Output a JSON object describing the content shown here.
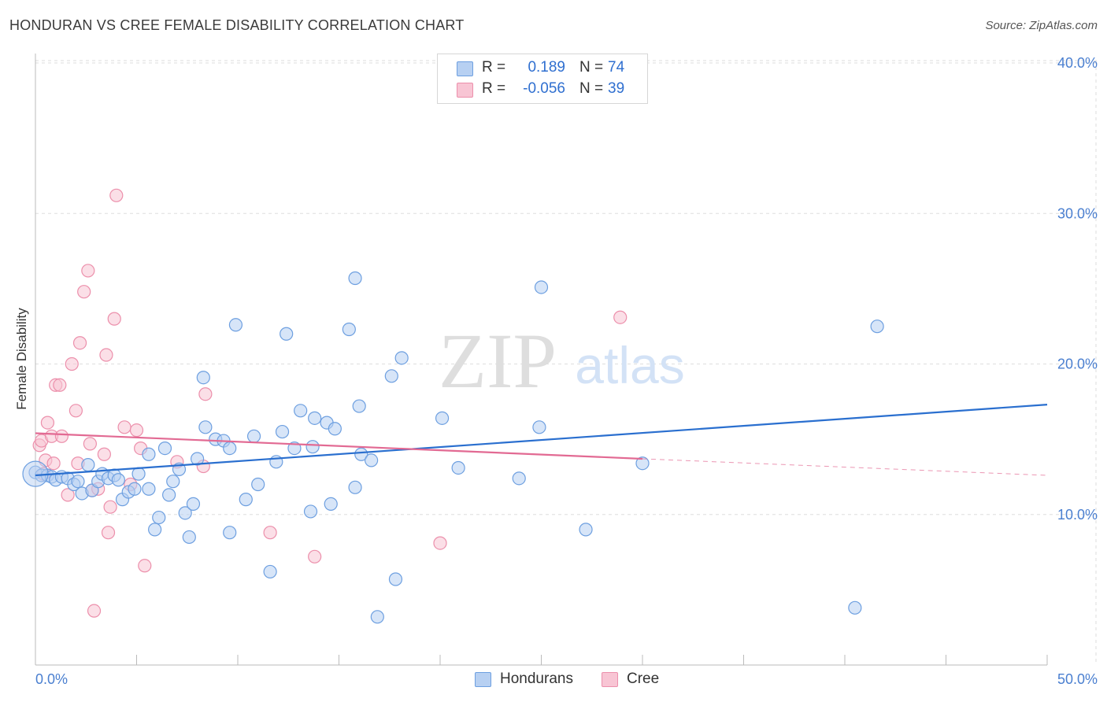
{
  "header": {
    "title": "HONDURAN VS CREE FEMALE DISABILITY CORRELATION CHART",
    "source": "Source: ZipAtlas.com"
  },
  "watermark": {
    "zip": "ZIP",
    "atlas": "atlas"
  },
  "colors": {
    "hondurans_fill": "#b7d0f2",
    "hondurans_stroke": "#6d9fe0",
    "hondurans_line": "#2a6fcf",
    "cree_fill": "#f8c5d4",
    "cree_stroke": "#ec8fab",
    "cree_line": "#e26a93",
    "grid": "#dddddd",
    "tick_text": "#4a7fd0"
  },
  "legend": {
    "rows": [
      {
        "r_label": "R =",
        "r_value": "0.189",
        "n_label": "N =",
        "n_value": "74"
      },
      {
        "r_label": "R =",
        "r_value": "-0.056",
        "n_label": "N =",
        "n_value": "39"
      }
    ]
  },
  "bottom_legend": {
    "hondurans": "Hondurans",
    "cree": "Cree"
  },
  "chart_data": {
    "type": "scatter",
    "title": "HONDURAN VS CREE FEMALE DISABILITY CORRELATION CHART",
    "xlabel": "",
    "ylabel": "Female Disability",
    "xlim": [
      0,
      50
    ],
    "ylim": [
      0,
      40
    ],
    "x_tick_labels": [
      "0.0%",
      "50.0%"
    ],
    "y_ticks": [
      10,
      20,
      30,
      40
    ],
    "y_tick_labels": [
      "10.0%",
      "20.0%",
      "30.0%",
      "40.0%"
    ],
    "grid": true,
    "legend_position": "top-center",
    "series": [
      {
        "name": "Hondurans",
        "r": 0.189,
        "n": 74,
        "trend": {
          "x": [
            0,
            50
          ],
          "y": [
            12.6,
            17.3
          ]
        },
        "points": [
          [
            0.0,
            12.8
          ],
          [
            0.3,
            12.6
          ],
          [
            0.6,
            12.6
          ],
          [
            0.8,
            12.5
          ],
          [
            1.0,
            12.3
          ],
          [
            1.3,
            12.5
          ],
          [
            1.6,
            12.4
          ],
          [
            1.9,
            12.0
          ],
          [
            2.1,
            12.2
          ],
          [
            2.3,
            11.4
          ],
          [
            2.6,
            13.3
          ],
          [
            2.8,
            11.6
          ],
          [
            3.1,
            12.2
          ],
          [
            3.3,
            12.7
          ],
          [
            3.6,
            12.4
          ],
          [
            3.9,
            12.6
          ],
          [
            4.1,
            12.3
          ],
          [
            4.3,
            11.0
          ],
          [
            4.6,
            11.5
          ],
          [
            4.9,
            11.7
          ],
          [
            5.1,
            12.7
          ],
          [
            5.6,
            11.7
          ],
          [
            5.6,
            14.0
          ],
          [
            5.9,
            9.0
          ],
          [
            6.1,
            9.8
          ],
          [
            6.4,
            14.4
          ],
          [
            6.6,
            11.3
          ],
          [
            6.8,
            12.2
          ],
          [
            7.1,
            13.0
          ],
          [
            7.4,
            10.1
          ],
          [
            7.6,
            8.5
          ],
          [
            7.8,
            10.7
          ],
          [
            8.0,
            13.7
          ],
          [
            8.3,
            19.1
          ],
          [
            8.4,
            15.8
          ],
          [
            8.9,
            15.0
          ],
          [
            9.3,
            14.9
          ],
          [
            9.6,
            14.4
          ],
          [
            9.9,
            22.6
          ],
          [
            9.6,
            8.8
          ],
          [
            10.4,
            11.0
          ],
          [
            10.8,
            15.2
          ],
          [
            11.0,
            12.0
          ],
          [
            11.6,
            6.2
          ],
          [
            11.9,
            13.5
          ],
          [
            12.2,
            15.5
          ],
          [
            12.4,
            22.0
          ],
          [
            12.8,
            14.4
          ],
          [
            13.1,
            16.9
          ],
          [
            13.6,
            10.2
          ],
          [
            13.7,
            14.5
          ],
          [
            13.8,
            16.4
          ],
          [
            14.4,
            16.1
          ],
          [
            14.6,
            10.7
          ],
          [
            14.8,
            15.7
          ],
          [
            15.5,
            22.3
          ],
          [
            15.8,
            11.8
          ],
          [
            15.8,
            25.7
          ],
          [
            16.0,
            17.2
          ],
          [
            16.1,
            14.0
          ],
          [
            16.6,
            13.6
          ],
          [
            16.9,
            3.2
          ],
          [
            17.6,
            19.2
          ],
          [
            17.8,
            5.7
          ],
          [
            18.1,
            20.4
          ],
          [
            20.1,
            16.4
          ],
          [
            20.9,
            13.1
          ],
          [
            23.9,
            12.4
          ],
          [
            24.9,
            15.8
          ],
          [
            25.0,
            25.1
          ],
          [
            27.2,
            9.0
          ],
          [
            30.0,
            13.4
          ],
          [
            40.5,
            3.8
          ],
          [
            41.6,
            22.5
          ]
        ]
      },
      {
        "name": "Cree",
        "r": -0.056,
        "n": 39,
        "trend": {
          "x": [
            0,
            30
          ],
          "y": [
            15.4,
            13.7
          ]
        },
        "trend_extension": {
          "x": [
            30,
            50
          ],
          "y": [
            13.7,
            12.6
          ]
        },
        "points": [
          [
            0.2,
            14.6
          ],
          [
            0.3,
            14.9
          ],
          [
            0.5,
            13.6
          ],
          [
            0.6,
            16.1
          ],
          [
            0.8,
            15.2
          ],
          [
            0.9,
            13.4
          ],
          [
            1.0,
            18.6
          ],
          [
            1.2,
            18.6
          ],
          [
            1.3,
            15.2
          ],
          [
            1.6,
            11.3
          ],
          [
            1.8,
            20.0
          ],
          [
            2.0,
            16.9
          ],
          [
            2.1,
            13.4
          ],
          [
            2.2,
            21.4
          ],
          [
            2.4,
            24.8
          ],
          [
            2.6,
            26.2
          ],
          [
            2.7,
            14.7
          ],
          [
            2.8,
            11.6
          ],
          [
            2.9,
            3.6
          ],
          [
            3.1,
            11.7
          ],
          [
            3.4,
            14.0
          ],
          [
            3.5,
            20.6
          ],
          [
            3.6,
            8.8
          ],
          [
            3.7,
            10.5
          ],
          [
            3.9,
            23.0
          ],
          [
            4.0,
            31.2
          ],
          [
            4.4,
            15.8
          ],
          [
            4.7,
            12.0
          ],
          [
            5.0,
            15.6
          ],
          [
            5.2,
            14.4
          ],
          [
            5.4,
            6.6
          ],
          [
            7.0,
            13.5
          ],
          [
            8.3,
            13.2
          ],
          [
            8.4,
            18.0
          ],
          [
            11.6,
            8.8
          ],
          [
            13.8,
            7.2
          ],
          [
            20.0,
            8.1
          ],
          [
            28.9,
            23.1
          ],
          [
            0.4,
            12.7
          ]
        ]
      }
    ]
  }
}
